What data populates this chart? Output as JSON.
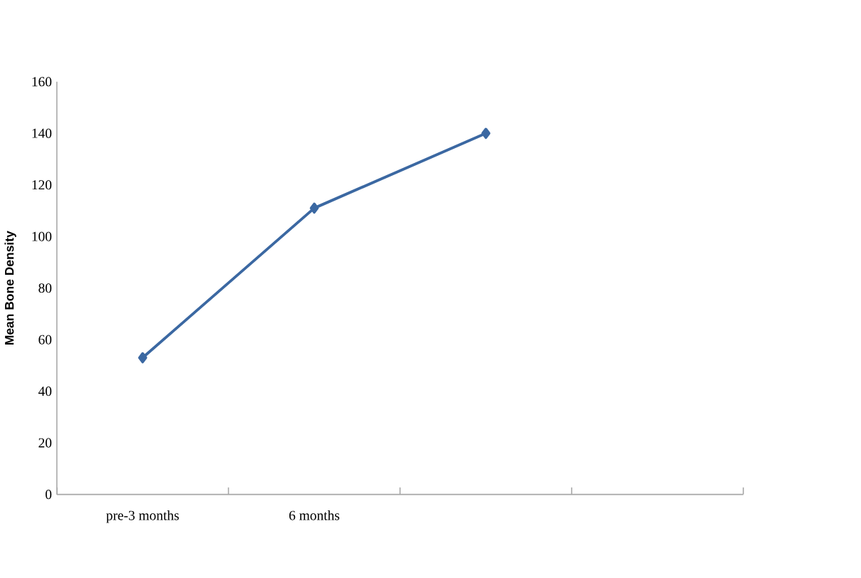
{
  "chart_data": {
    "type": "line",
    "ylabel": "Mean Bone Density",
    "categories": [
      "pre-3 months",
      "6 months",
      null,
      null
    ],
    "series": [
      {
        "color": "#3b68a2",
        "values": [
          53,
          111,
          140,
          null
        ]
      }
    ],
    "ylim": [
      0,
      160
    ],
    "yticks": [
      0,
      20,
      40,
      60,
      80,
      100,
      120,
      140,
      160
    ],
    "marker": "diamond",
    "line_style": "solid"
  }
}
